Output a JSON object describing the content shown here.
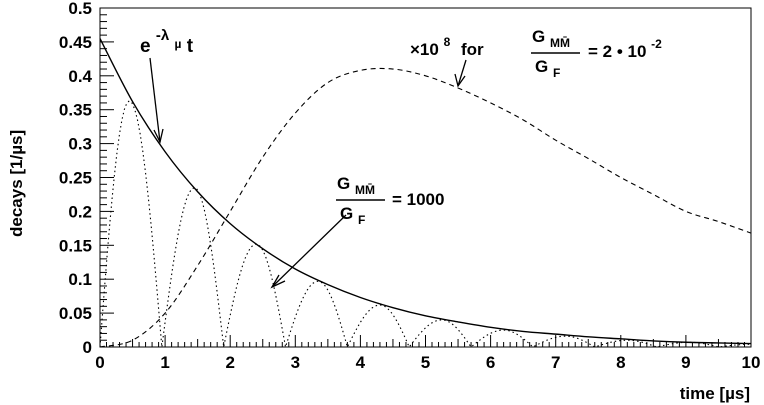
{
  "chart_data": {
    "type": "line",
    "xlabel": "time [µs]",
    "ylabel": "decays [1/µs]",
    "xlim": [
      0,
      10
    ],
    "ylim": [
      0,
      0.5
    ],
    "x_ticks": [
      "0",
      "1",
      "2",
      "3",
      "4",
      "5",
      "6",
      "7",
      "8",
      "9",
      "10"
    ],
    "y_ticks": [
      "0",
      "0.05",
      "0.1",
      "0.15",
      "0.2",
      "0.25",
      "0.3",
      "0.35",
      "0.4",
      "0.45",
      "0.5"
    ],
    "grid": false,
    "series": [
      {
        "style": "solid",
        "x": [
          0,
          0.5,
          1,
          1.5,
          2,
          2.5,
          3,
          3.5,
          4,
          4.5,
          5,
          5.5,
          6,
          6.5,
          7,
          7.5,
          8,
          8.5,
          9,
          9.5,
          10
        ],
        "y": [
          0.455,
          0.362,
          0.288,
          0.229,
          0.182,
          0.145,
          0.115,
          0.092,
          0.073,
          0.058,
          0.046,
          0.037,
          0.029,
          0.023,
          0.019,
          0.015,
          0.012,
          0.009,
          0.007,
          0.006,
          0.005
        ]
      },
      {
        "style": "dotted",
        "x": [
          0,
          0.45,
          0.95,
          1.45,
          1.9,
          2.4,
          2.85,
          3.35,
          3.8,
          4.3,
          4.75,
          5.25,
          5.7,
          6.2,
          6.65,
          7.15,
          7.6,
          8.1,
          8.55,
          9.05,
          9.5,
          10
        ],
        "y": [
          0,
          0.363,
          0,
          0.235,
          0,
          0.152,
          0,
          0.097,
          0,
          0.062,
          0,
          0.04,
          0,
          0.025,
          0,
          0.016,
          0,
          0.01,
          0,
          0.007,
          0,
          0.004
        ]
      },
      {
        "style": "dashed",
        "x": [
          0,
          0.5,
          1,
          1.5,
          2,
          2.5,
          3,
          3.5,
          4,
          4.5,
          5,
          5.5,
          6,
          6.5,
          7,
          7.5,
          8,
          8.5,
          9,
          9.5,
          10
        ],
        "y": [
          0,
          0.01,
          0.05,
          0.12,
          0.2,
          0.28,
          0.345,
          0.39,
          0.408,
          0.41,
          0.4,
          0.382,
          0.36,
          0.335,
          0.305,
          0.278,
          0.25,
          0.225,
          0.2,
          0.185,
          0.168
        ]
      }
    ],
    "annotations": {
      "exp": {
        "base": "e",
        "exponent": "-λ",
        "sub": "µ",
        "tail": "t"
      },
      "dashed": {
        "prefix": "×10",
        "prefix_sup": "8",
        "for_text": "for",
        "num_G": "G",
        "num_sub": "MM̄",
        "den_G": "G",
        "den_sub": "F",
        "equals": "= 2 • 10",
        "equals_sup": "-2"
      },
      "dotted": {
        "num_G": "G",
        "num_sub": "MM̄",
        "den_G": "G",
        "den_sub": "F",
        "equals": "= 1000"
      }
    }
  }
}
